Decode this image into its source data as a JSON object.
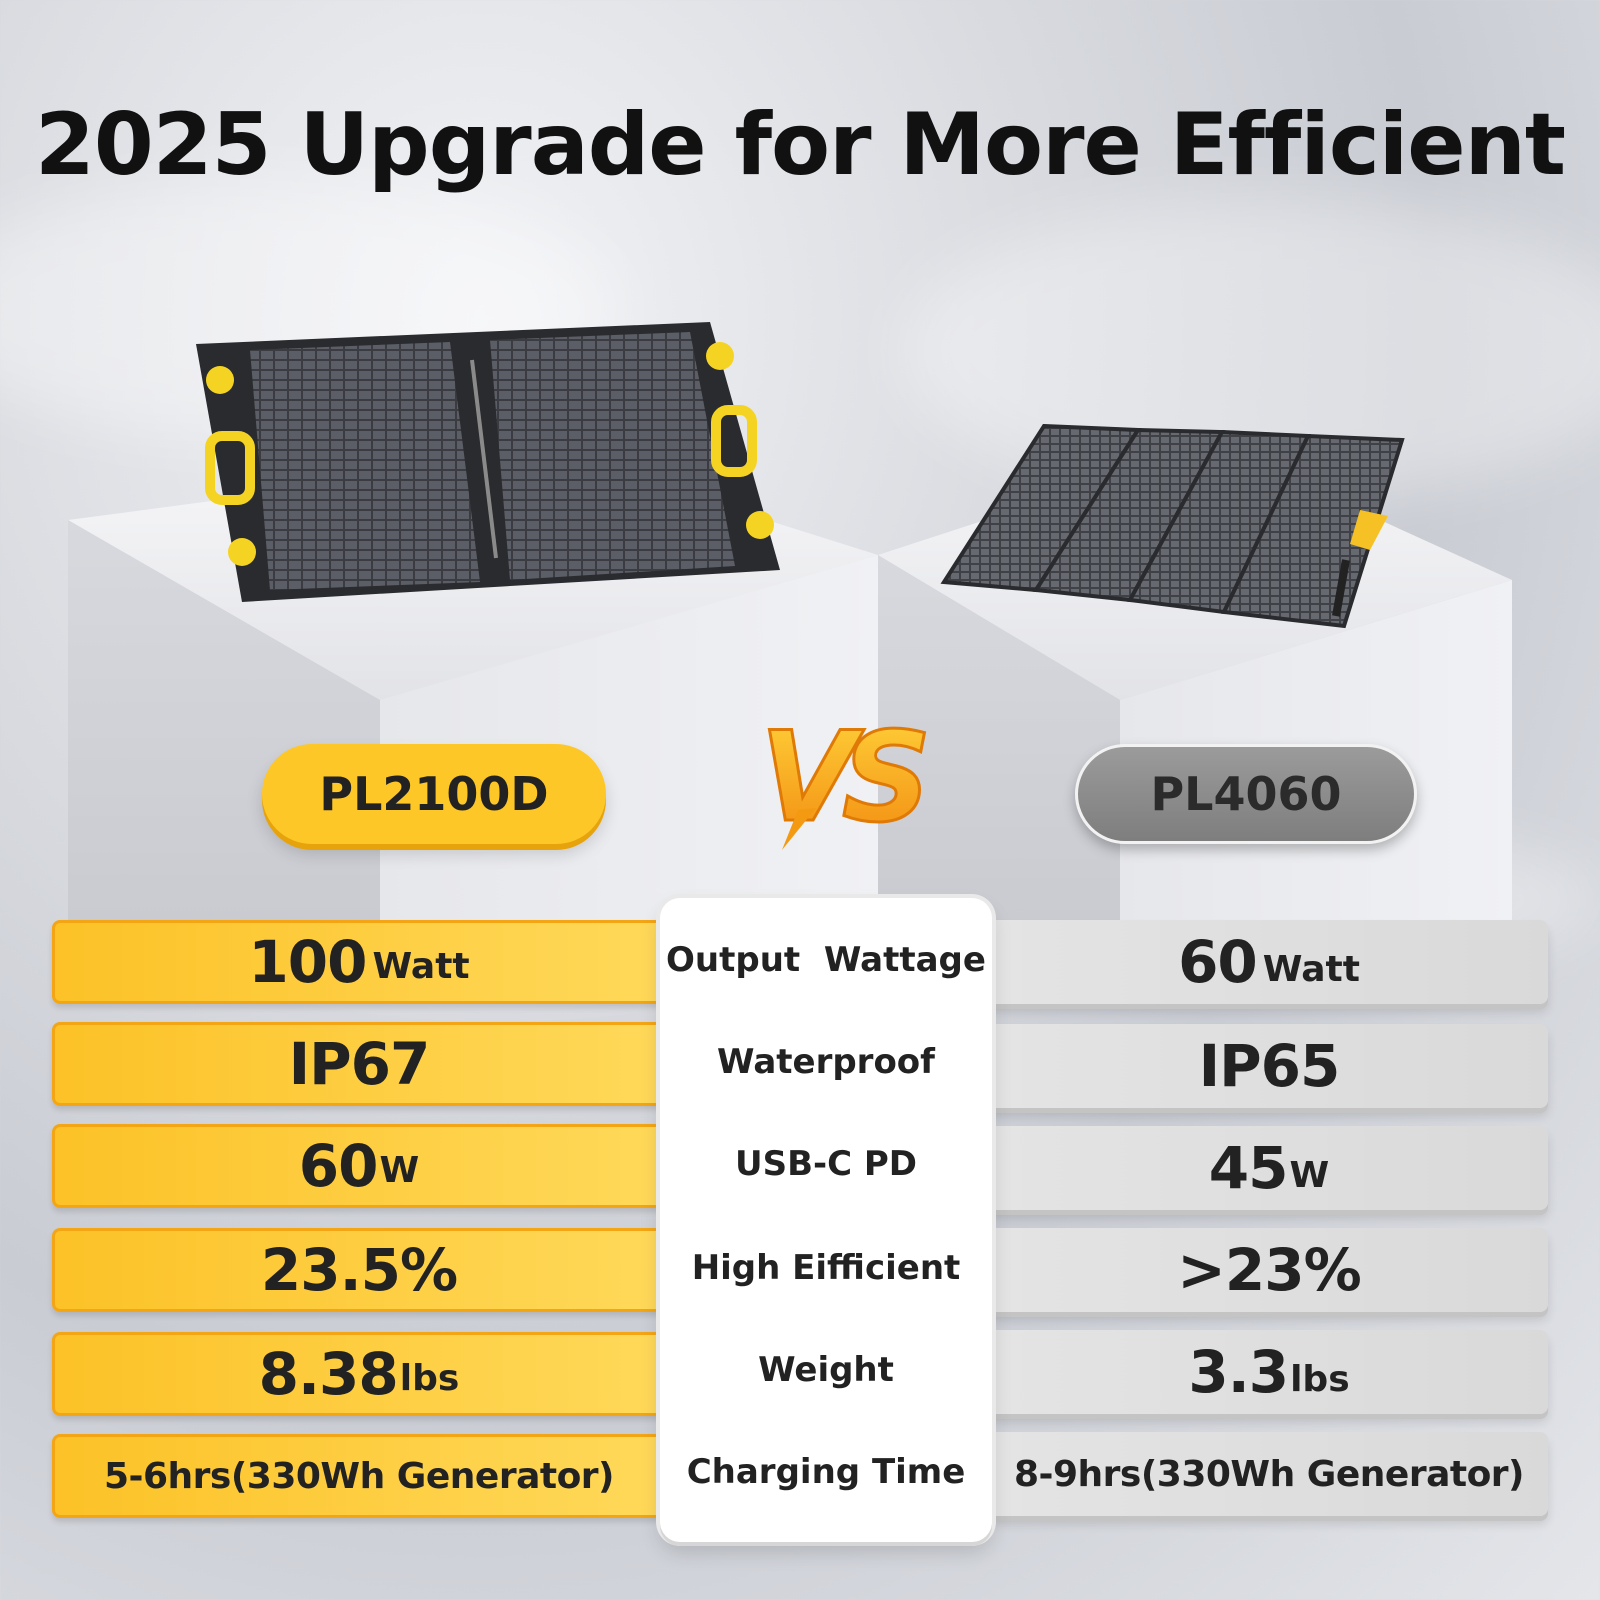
{
  "headline": "2025 Upgrade for More Efficient",
  "products": {
    "left": {
      "model": "PL2100D"
    },
    "right": {
      "model": "PL4060"
    }
  },
  "vs_label": "VS",
  "colors": {
    "accent_yellow": "#fdc727",
    "accent_orange": "#f7931e",
    "neutral_gray": "#8a8a8a",
    "panel_dark": "#2a2b2e"
  },
  "specs": [
    {
      "label": "Output  Wattage",
      "left": {
        "value": "100",
        "unit": "Watt"
      },
      "right": {
        "value": "60",
        "unit": "Watt"
      }
    },
    {
      "label": "Waterproof",
      "left": {
        "value": "IP67",
        "unit": ""
      },
      "right": {
        "value": "IP65",
        "unit": ""
      }
    },
    {
      "label": "USB-C PD",
      "left": {
        "value": "60",
        "unit": "W"
      },
      "right": {
        "value": "45",
        "unit": "W"
      }
    },
    {
      "label": "High Eifficient",
      "left": {
        "value": "23.5%",
        "unit": ""
      },
      "right": {
        "value": ">23%",
        "unit": ""
      }
    },
    {
      "label": "Weight",
      "left": {
        "value": "8.38",
        "unit": "lbs"
      },
      "right": {
        "value": "3.3",
        "unit": "lbs"
      }
    },
    {
      "label": "Charging Time",
      "left": {
        "value": "5-6hrs(330Wh Generator)",
        "unit": ""
      },
      "right": {
        "value": "8-9hrs(330Wh Generator)",
        "unit": ""
      }
    }
  ]
}
